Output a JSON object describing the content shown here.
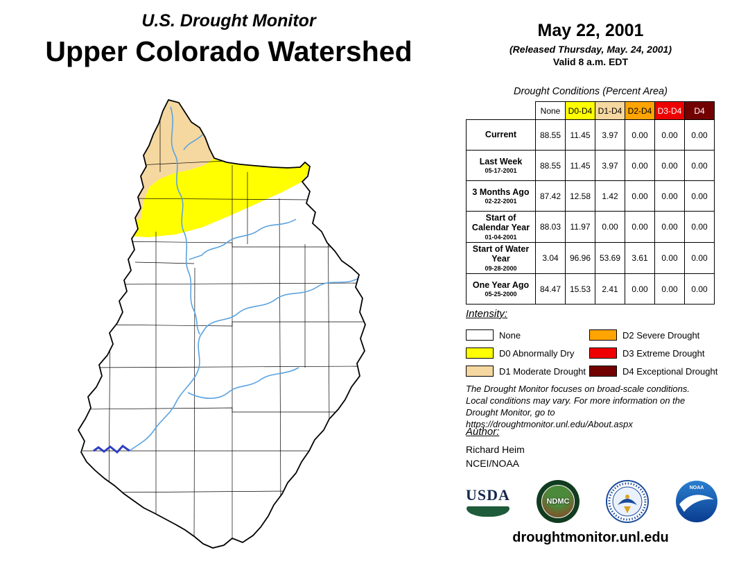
{
  "header": {
    "title_small": "U.S. Drought Monitor",
    "title_large": "Upper Colorado Watershed"
  },
  "date_block": {
    "date": "May 22, 2001",
    "released": "(Released Thursday, May. 24, 2001)",
    "valid": "Valid 8 a.m. EDT"
  },
  "table": {
    "title": "Drought Conditions (Percent Area)",
    "columns": [
      {
        "label": "None",
        "bg": "#FFFFFF",
        "fg": "#000000"
      },
      {
        "label": "D0-D4",
        "bg": "#FFFF00",
        "fg": "#000000"
      },
      {
        "label": "D1-D4",
        "bg": "#F5D7A0",
        "fg": "#000000"
      },
      {
        "label": "D2-D4",
        "bg": "#FFA400",
        "fg": "#000000"
      },
      {
        "label": "D3-D4",
        "bg": "#EE0000",
        "fg": "#FFFFFF"
      },
      {
        "label": "D4",
        "bg": "#720000",
        "fg": "#FFFFFF"
      }
    ],
    "rows": [
      {
        "label": "Current",
        "date": "",
        "values": [
          "88.55",
          "11.45",
          "3.97",
          "0.00",
          "0.00",
          "0.00"
        ]
      },
      {
        "label": "Last Week",
        "date": "05-17-2001",
        "values": [
          "88.55",
          "11.45",
          "3.97",
          "0.00",
          "0.00",
          "0.00"
        ]
      },
      {
        "label": "3 Months Ago",
        "date": "02-22-2001",
        "values": [
          "87.42",
          "12.58",
          "1.42",
          "0.00",
          "0.00",
          "0.00"
        ]
      },
      {
        "label": "Start of Calendar Year",
        "date": "01-04-2001",
        "values": [
          "88.03",
          "11.97",
          "0.00",
          "0.00",
          "0.00",
          "0.00"
        ]
      },
      {
        "label": "Start of Water Year",
        "date": "09-28-2000",
        "values": [
          "3.04",
          "96.96",
          "53.69",
          "3.61",
          "0.00",
          "0.00"
        ]
      },
      {
        "label": "One Year Ago",
        "date": "05-25-2000",
        "values": [
          "84.47",
          "15.53",
          "2.41",
          "0.00",
          "0.00",
          "0.00"
        ]
      }
    ]
  },
  "legend": {
    "title": "Intensity:",
    "items": [
      {
        "label": "None",
        "color": "#FFFFFF"
      },
      {
        "label": "D0 Abnormally Dry",
        "color": "#FFFF00"
      },
      {
        "label": "D1 Moderate Drought",
        "color": "#F5D7A0"
      },
      {
        "label": "D2 Severe Drought",
        "color": "#FFA400"
      },
      {
        "label": "D3 Extreme Drought",
        "color": "#EE0000"
      },
      {
        "label": "D4 Exceptional Drought",
        "color": "#720000"
      }
    ]
  },
  "disclaimer": {
    "lines": [
      "The Drought Monitor focuses on broad-scale conditions.",
      "Local conditions may vary. For more information on the",
      "Drought Monitor, go to https://droughtmonitor.unl.edu/About.aspx"
    ]
  },
  "author_block": {
    "label": "Author:",
    "name": "Richard Heim",
    "org": "NCEI/NOAA"
  },
  "logos": {
    "usda_label": "USDA",
    "ndmc_label": "NDMC",
    "noaa_label": "NOAA"
  },
  "footer": {
    "url": "droughtmonitor.unl.edu"
  },
  "map": {
    "river_color": "#5aa2e0",
    "lake_color": "#2f3fc0",
    "none_fill": "#FFFFFF"
  }
}
